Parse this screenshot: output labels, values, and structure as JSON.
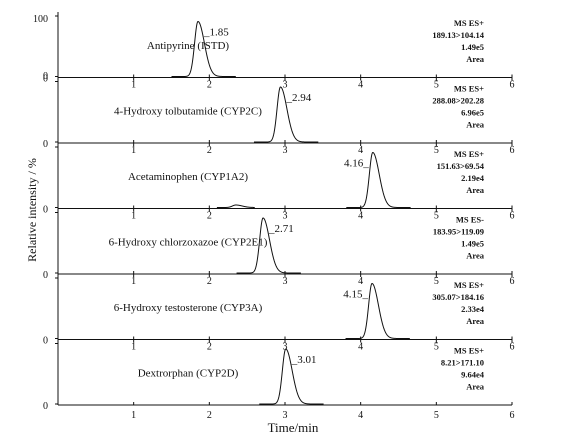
{
  "chart_data": {
    "type": "line",
    "xlabel": "Time/min",
    "ylabel": "Relative intensity / %",
    "xlim": [
      0,
      6
    ],
    "ylim": [
      0,
      100
    ],
    "x_ticks": [
      "1",
      "2",
      "3",
      "4",
      "5",
      "6"
    ],
    "bottom_x_ticks": [
      "1",
      "2",
      "3",
      "4",
      "5",
      "6"
    ],
    "top_y_tick": "100",
    "zero_tick": "0",
    "leading_zero": "0",
    "legend": "none",
    "grid": false,
    "panels": [
      {
        "label": "Antipyrine (ISTD)",
        "peak_time": 1.85,
        "annotation": "_1.85",
        "ms_info": [
          "MS ES+",
          "189.13>104.14",
          "1.49e5",
          "Area"
        ],
        "show_top_ticks": false,
        "extra_peak": null
      },
      {
        "label": "4-Hydroxy tolbutamide (CYP2C)",
        "peak_time": 2.94,
        "annotation": "_2.94",
        "ms_info": [
          "MS ES+",
          "288.08>202.28",
          "6.96e5",
          "Area"
        ],
        "show_top_ticks": true,
        "extra_peak": null
      },
      {
        "label": "Acetaminophen (CYP1A2)",
        "peak_time": 4.16,
        "annotation": "4.16_",
        "ms_info": [
          "MS ES+",
          "151.63>69.54",
          "2.19e4",
          "Area"
        ],
        "show_top_ticks": true,
        "extra_peak": 2.35
      },
      {
        "label": "6-Hydroxy chlorzoxazoe (CYP2E1)",
        "peak_time": 2.71,
        "annotation": "_2.71",
        "ms_info": [
          "MS ES-",
          "183.95>119.09",
          "1.49e5",
          "Area"
        ],
        "show_top_ticks": true,
        "extra_peak": null
      },
      {
        "label": "6-Hydroxy testosterone (CYP3A)",
        "peak_time": 4.15,
        "annotation": "4.15_",
        "ms_info": [
          "MS ES+",
          "305.07>184.16",
          "2.33e4",
          "Area"
        ],
        "show_top_ticks": true,
        "extra_peak": null
      },
      {
        "label": "Dextrorphan (CYP2D)",
        "peak_time": 3.01,
        "annotation": "_3.01",
        "ms_info": [
          "MS ES+",
          "8.21>171.10",
          "9.64e4",
          "Area"
        ],
        "show_top_ticks": true,
        "extra_peak": null
      }
    ]
  }
}
